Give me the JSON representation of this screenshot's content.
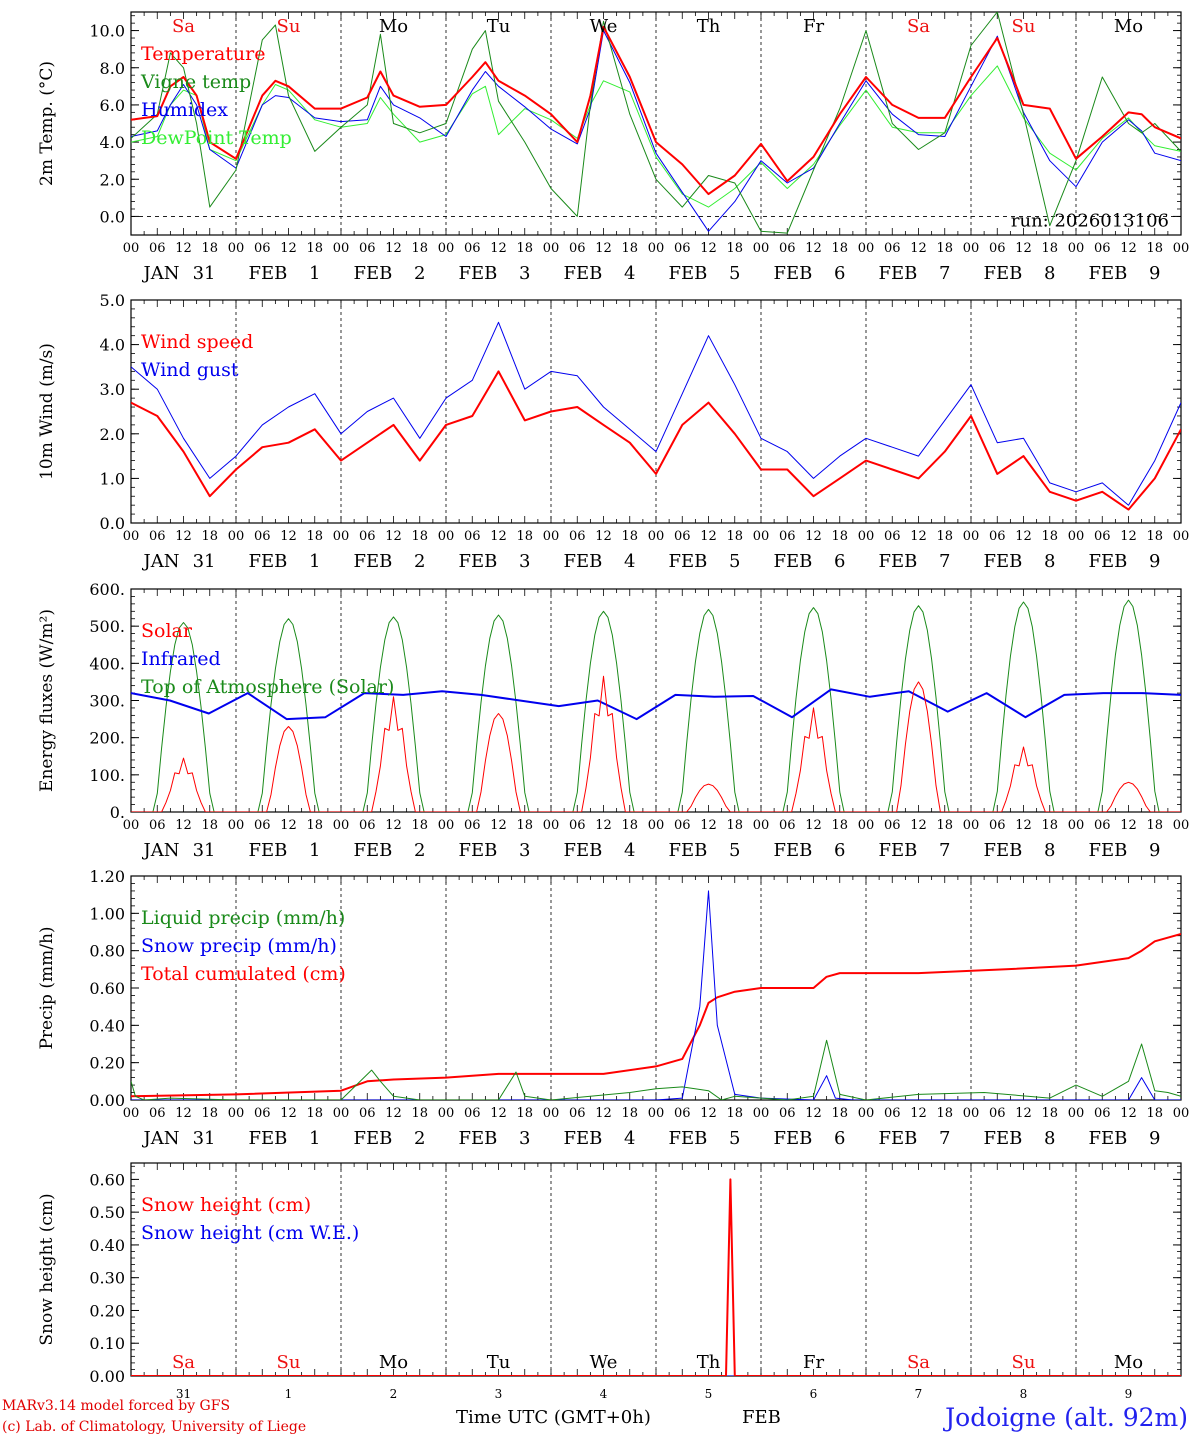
{
  "footer": {
    "credit_line1": "MARv3.14 model forced by GFS",
    "credit_line2": "(c) Lab. of Climatology, University of Liege",
    "time_axis_title": "Time UTC (GMT+0h)",
    "month_label": "FEB",
    "station": "Jodoigne (alt. 92m)"
  },
  "colors": {
    "red": "#ff0000",
    "dark_green": "#1a8a1a",
    "blue": "#0000ee",
    "light_green": "#33ee33",
    "weekend_day": "#ee1111",
    "weekday": "#000000"
  },
  "chart_data": [
    {
      "id": "temperature",
      "type": "line",
      "ylabel": "2m Temp. (°C)",
      "ylim": [
        -1,
        11
      ],
      "yticks": [
        0,
        2,
        4,
        6,
        8,
        10
      ],
      "ytick_labels": [
        "0.0",
        "2.0",
        "4.0",
        "6.0",
        "8.0",
        "10.0"
      ],
      "zero_line": true,
      "annotation": "run: 2026013106",
      "day_labels": [
        "Sa",
        "Su",
        "Mo",
        "Tu",
        "We",
        "Th",
        "Fr",
        "Sa",
        "Su",
        "Mo"
      ],
      "x_hours": [
        0,
        6,
        9,
        12,
        15,
        18,
        24,
        30,
        33,
        36,
        42,
        48,
        54,
        57,
        60,
        66,
        72,
        78,
        81,
        84,
        90,
        96,
        102,
        105,
        108,
        114,
        120,
        126,
        132,
        138,
        144,
        150,
        156,
        162,
        168,
        174,
        180,
        186,
        192,
        198,
        204,
        210,
        216,
        222,
        228,
        231,
        234,
        240
      ],
      "series": [
        {
          "name": "Temperature",
          "color": "#ff0000",
          "width": 2,
          "values": [
            5.2,
            5.4,
            7.0,
            7.5,
            6.5,
            4.0,
            3.1,
            6.5,
            7.3,
            7.0,
            5.8,
            5.8,
            6.4,
            7.8,
            6.5,
            5.9,
            6.0,
            7.5,
            8.3,
            7.3,
            6.5,
            5.5,
            4.0,
            6.5,
            10.2,
            7.5,
            4.0,
            2.8,
            1.2,
            2.2,
            3.9,
            1.9,
            3.2,
            5.5,
            7.5,
            6.0,
            5.3,
            5.3,
            7.5,
            9.6,
            6.0,
            5.8,
            3.1,
            4.3,
            5.6,
            5.5,
            4.8,
            4.2
          ]
        },
        {
          "name": "Vigne temp",
          "color": "#1a8a1a",
          "width": 1,
          "values": [
            4.2,
            5.5,
            8.8,
            8.0,
            5.0,
            0.5,
            2.5,
            9.5,
            10.3,
            6.5,
            3.5,
            4.8,
            6.0,
            9.8,
            5.0,
            4.5,
            5.0,
            9.0,
            10.0,
            6.2,
            4.0,
            1.5,
            0.0,
            6.0,
            10.5,
            5.5,
            2.0,
            0.5,
            2.2,
            1.8,
            -0.8,
            -0.9,
            2.5,
            5.8,
            10.0,
            5.0,
            3.6,
            4.5,
            9.2,
            11.0,
            5.5,
            -0.5,
            3.0,
            7.5,
            5.0,
            4.5,
            5.0,
            3.5
          ]
        },
        {
          "name": "Humidex",
          "color": "#0000ee",
          "width": 1,
          "values": [
            4.3,
            4.6,
            6.0,
            7.1,
            6.0,
            3.6,
            2.6,
            6.0,
            6.5,
            6.4,
            5.3,
            5.1,
            5.2,
            7.0,
            6.0,
            5.3,
            4.3,
            6.8,
            7.8,
            7.0,
            5.9,
            4.7,
            3.9,
            5.8,
            10.0,
            7.2,
            3.4,
            1.3,
            -0.8,
            0.8,
            3.0,
            1.8,
            2.6,
            5.0,
            7.3,
            5.5,
            4.4,
            4.3,
            7.0,
            9.7,
            5.6,
            3.0,
            1.6,
            4.0,
            5.2,
            4.6,
            3.4,
            3.0
          ]
        },
        {
          "name": "DewPoint Temp",
          "color": "#33ee33",
          "width": 1,
          "values": [
            4.0,
            4.3,
            6.0,
            6.8,
            6.5,
            3.6,
            3.0,
            6.0,
            7.1,
            6.8,
            5.2,
            4.8,
            5.0,
            6.4,
            5.5,
            4.0,
            4.4,
            6.6,
            7.0,
            4.4,
            5.8,
            5.2,
            4.2,
            6.0,
            7.3,
            6.7,
            3.2,
            1.2,
            0.5,
            1.5,
            2.9,
            1.5,
            2.8,
            4.9,
            6.8,
            4.8,
            4.5,
            4.5,
            6.5,
            8.1,
            5.3,
            3.4,
            2.5,
            4.2,
            5.3,
            4.5,
            3.8,
            3.5
          ]
        }
      ]
    },
    {
      "id": "wind",
      "type": "line",
      "ylabel": "10m Wind (m/s)",
      "ylim": [
        0,
        5
      ],
      "yticks": [
        0,
        1,
        2,
        3,
        4,
        5
      ],
      "ytick_labels": [
        "0.0",
        "1.0",
        "2.0",
        "3.0",
        "4.0",
        "5.0"
      ],
      "x_hours": [
        0,
        6,
        12,
        18,
        24,
        30,
        36,
        42,
        48,
        54,
        60,
        66,
        72,
        78,
        84,
        90,
        96,
        102,
        108,
        114,
        120,
        126,
        132,
        138,
        144,
        150,
        156,
        162,
        168,
        174,
        180,
        186,
        192,
        198,
        204,
        210,
        216,
        222,
        228,
        234,
        240
      ],
      "series": [
        {
          "name": "Wind speed",
          "color": "#ff0000",
          "width": 2,
          "values": [
            2.7,
            2.4,
            1.6,
            0.6,
            1.2,
            1.7,
            1.8,
            2.1,
            1.4,
            1.8,
            2.2,
            1.4,
            2.2,
            2.4,
            3.4,
            2.3,
            2.5,
            2.6,
            2.2,
            1.8,
            1.1,
            2.2,
            2.7,
            2.0,
            1.2,
            1.2,
            0.6,
            1.0,
            1.4,
            1.2,
            1.0,
            1.6,
            2.4,
            1.1,
            1.5,
            0.7,
            0.5,
            0.7,
            0.3,
            1.0,
            2.1
          ]
        },
        {
          "name": "Wind gust",
          "color": "#0000ee",
          "width": 1,
          "values": [
            3.5,
            3.0,
            1.9,
            1.0,
            1.5,
            2.2,
            2.6,
            2.9,
            2.0,
            2.5,
            2.8,
            1.9,
            2.8,
            3.2,
            4.5,
            3.0,
            3.4,
            3.3,
            2.6,
            2.1,
            1.6,
            2.9,
            4.2,
            3.1,
            1.9,
            1.6,
            1.0,
            1.5,
            1.9,
            1.7,
            1.5,
            2.3,
            3.1,
            1.8,
            1.9,
            0.9,
            0.7,
            0.9,
            0.4,
            1.4,
            2.7
          ]
        }
      ]
    },
    {
      "id": "energy",
      "type": "line",
      "ylabel": "Energy fluxes (W/m²)",
      "ylim": [
        0,
        600
      ],
      "yticks": [
        0,
        100,
        200,
        300,
        400,
        500,
        600
      ],
      "ytick_labels": [
        "0.",
        "100.",
        "200.",
        "300.",
        "400.",
        "500.",
        "600."
      ],
      "toa_peaks": [
        510,
        520,
        525,
        530,
        540,
        545,
        550,
        555,
        565,
        570
      ],
      "solar_peaks": [
        145,
        230,
        310,
        265,
        365,
        75,
        280,
        350,
        175,
        80
      ],
      "infrared_values": [
        320,
        300,
        265,
        320,
        250,
        255,
        320,
        315,
        325,
        315,
        300,
        285,
        300,
        250,
        315,
        310,
        312,
        255,
        330,
        310,
        325,
        270,
        320,
        255,
        315,
        320,
        320,
        315
      ],
      "series": [
        {
          "name": "Solar",
          "color": "#ff0000",
          "width": 1
        },
        {
          "name": "Infrared",
          "color": "#0000ee",
          "width": 2
        },
        {
          "name": "Top of Atmosphere (Solar)",
          "color": "#1a8a1a",
          "width": 1
        }
      ]
    },
    {
      "id": "precip",
      "type": "line",
      "ylabel": "Precip (mm/h)",
      "ylim": [
        0,
        1.2
      ],
      "yticks": [
        0,
        0.2,
        0.4,
        0.6,
        0.8,
        1.0,
        1.2
      ],
      "ytick_labels": [
        "0.00",
        "0.20",
        "0.40",
        "0.60",
        "0.80",
        "1.00",
        "1.20"
      ],
      "series": [
        {
          "name": "Liquid precip (mm/h)",
          "color": "#1a8a1a",
          "width": 1,
          "x_hours": [
            0,
            1,
            3,
            9,
            24,
            48,
            55,
            57,
            60,
            66,
            84,
            88,
            90,
            96,
            114,
            120,
            126,
            132,
            135,
            138,
            144,
            150,
            156,
            159,
            162,
            168,
            180,
            195,
            210,
            216,
            222,
            228,
            231,
            234,
            237,
            240
          ],
          "values": [
            0.1,
            0.02,
            0,
            0.01,
            0,
            0,
            0.16,
            0.1,
            0.02,
            0,
            0,
            0.15,
            0.02,
            0,
            0.04,
            0.06,
            0.07,
            0.05,
            0,
            0.02,
            0.01,
            0,
            0.02,
            0.32,
            0.03,
            0,
            0.03,
            0.04,
            0.01,
            0.08,
            0.02,
            0.1,
            0.3,
            0.05,
            0.04,
            0.02
          ]
        },
        {
          "name": "Snow precip (mm/h)",
          "color": "#0000ee",
          "width": 1,
          "x_hours": [
            0,
            120,
            126,
            130,
            132,
            134,
            138,
            144,
            156,
            159,
            161,
            165,
            228,
            231,
            234,
            240
          ],
          "values": [
            0,
            0,
            0.01,
            0.5,
            1.12,
            0.4,
            0.03,
            0.01,
            0,
            0.13,
            0.01,
            0,
            0,
            0.12,
            0,
            0
          ]
        },
        {
          "name": "Total cumulated (cm)",
          "color": "#ff0000",
          "width": 2,
          "x_hours": [
            0,
            24,
            48,
            54,
            60,
            72,
            84,
            108,
            120,
            126,
            130,
            132,
            134,
            138,
            144,
            150,
            156,
            159,
            162,
            180,
            200,
            216,
            228,
            231,
            234,
            240
          ],
          "values": [
            0.02,
            0.03,
            0.05,
            0.1,
            0.11,
            0.12,
            0.14,
            0.14,
            0.18,
            0.22,
            0.4,
            0.52,
            0.55,
            0.58,
            0.6,
            0.6,
            0.6,
            0.66,
            0.68,
            0.68,
            0.7,
            0.72,
            0.76,
            0.8,
            0.85,
            0.89
          ]
        }
      ]
    },
    {
      "id": "snow",
      "type": "line",
      "ylabel": "Snow height (cm)",
      "ylim": [
        0,
        0.65
      ],
      "yticks": [
        0,
        0.1,
        0.2,
        0.3,
        0.4,
        0.5,
        0.6
      ],
      "ytick_labels": [
        "0.00",
        "0.10",
        "0.20",
        "0.30",
        "0.40",
        "0.50",
        "0.60"
      ],
      "day_labels": [
        "Sa",
        "Su",
        "Mo",
        "Tu",
        "We",
        "Th",
        "Fr",
        "Sa",
        "Su",
        "Mo"
      ],
      "day_numbers": [
        "31",
        "1",
        "2",
        "3",
        "4",
        "5",
        "6",
        "7",
        "8",
        "9"
      ],
      "series": [
        {
          "name": "Snow height (cm)",
          "color": "#ff0000",
          "width": 2,
          "x_hours": [
            0,
            136,
            137,
            138,
            240
          ],
          "values": [
            0,
            0,
            0.6,
            0,
            0
          ]
        },
        {
          "name": "Snow height (cm W.E.)",
          "color": "#0000ee",
          "width": 1,
          "x_hours": [
            0,
            240
          ],
          "values": [
            0,
            0
          ]
        }
      ]
    }
  ],
  "x_axis": {
    "hour_labels": [
      "00",
      "06",
      "12",
      "18"
    ],
    "date_labels": [
      "JAN 31",
      "FEB 1",
      "FEB 2",
      "FEB 3",
      "FEB 4",
      "FEB 5",
      "FEB 6",
      "FEB 7",
      "FEB 8",
      "FEB 9"
    ],
    "total_hours": 240
  }
}
